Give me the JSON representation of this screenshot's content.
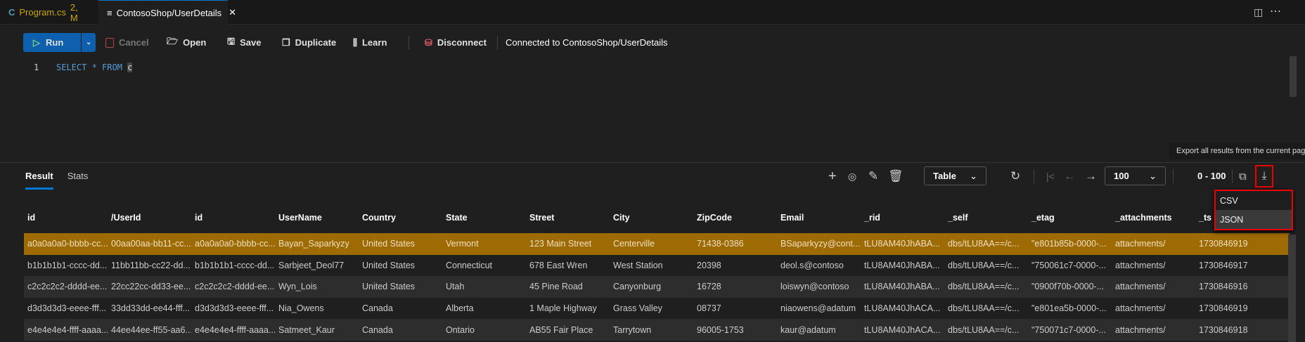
{
  "tabs": [
    {
      "label": "Program.cs",
      "badge": "2, M"
    },
    {
      "label": "ContosoShop/UserDetails",
      "close": "✕"
    }
  ],
  "toolbar": {
    "run": "Run",
    "cancel": "Cancel",
    "open": "Open",
    "save": "Save",
    "duplicate": "Duplicate",
    "learn": "Learn",
    "disconnect": "Disconnect",
    "status": "Connected to ContosoShop/UserDetails"
  },
  "editor": {
    "line_number": "1",
    "query_keywords": "SELECT * FROM",
    "query_alias": "c"
  },
  "results": {
    "tabs": [
      "Result",
      "Stats"
    ],
    "view_select": "Table",
    "page_size": "100",
    "range": "0 - 100",
    "tooltip": "Export all results from the current page",
    "export_menu": [
      "CSV",
      "JSON"
    ],
    "columns": [
      "id",
      "/UserId",
      "id",
      "UserName",
      "Country",
      "State",
      "Street",
      "City",
      "ZipCode",
      "Email",
      "_rid",
      "_self",
      "_etag",
      "_attachments",
      "_ts"
    ],
    "rows": [
      [
        "a0a0a0a0-bbbb-cc...",
        "00aa00aa-bb11-cc...",
        "a0a0a0a0-bbbb-cc...",
        "Bayan_Saparkyzy",
        "United States",
        "Vermont",
        "123 Main Street",
        "Centerville",
        "71438-0386",
        "BSaparkyzy@cont...",
        "tLU8AM40JhABA...",
        "dbs/tLU8AA==/c...",
        "\"e801b85b-0000-...",
        "attachments/",
        "1730846919"
      ],
      [
        "b1b1b1b1-cccc-dd...",
        "11bb11bb-cc22-dd...",
        "b1b1b1b1-cccc-dd...",
        "Sarbjeet_Deol77",
        "United States",
        "Connecticut",
        "678 East Wren",
        "West Station",
        "20398",
        "deol.s@contoso",
        "tLU8AM40JhABA...",
        "dbs/tLU8AA==/c...",
        "\"750061c7-0000-...",
        "attachments/",
        "1730846917"
      ],
      [
        "c2c2c2c2-dddd-ee...",
        "22cc22cc-dd33-ee...",
        "c2c2c2c2-dddd-ee...",
        "Wyn_Lois",
        "United States",
        "Utah",
        "45 Pine Road",
        "Canyonburg",
        "16728",
        "loiswyn@contoso",
        "tLU8AM40JhABA...",
        "dbs/tLU8AA==/c...",
        "\"0900f70b-0000-...",
        "attachments/",
        "1730846916"
      ],
      [
        "d3d3d3d3-eeee-fff...",
        "33dd33dd-ee44-fff...",
        "d3d3d3d3-eeee-fff...",
        "Nia_Owens",
        "Canada",
        "Alberta",
        "1 Maple Highway",
        "Grass Valley",
        "08737",
        "niaowens@adatum",
        "tLU8AM40JhACA...",
        "dbs/tLU8AA==/c...",
        "\"e801ea5b-0000-...",
        "attachments/",
        "1730846919"
      ],
      [
        "e4e4e4e4-ffff-aaaa...",
        "44ee44ee-ff55-aa6...",
        "e4e4e4e4-ffff-aaaa...",
        "Satmeet_Kaur",
        "Canada",
        "Ontario",
        "AB55 Fair Place",
        "Tarrytown",
        "96005-1753",
        "kaur@adatum",
        "tLU8AM40JhACA...",
        "dbs/tLU8AA==/c...",
        "\"750071c7-0000-...",
        "attachments/",
        "1730846918"
      ]
    ]
  },
  "colors": {
    "accent": "#0078d4",
    "selected_row": "#9e6a03",
    "highlight_box": "#e00000"
  }
}
